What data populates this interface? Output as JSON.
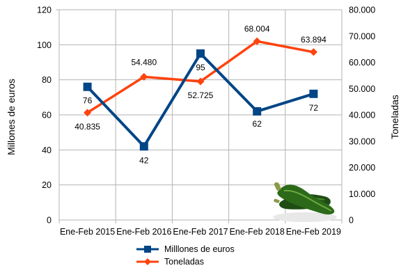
{
  "chart_data": {
    "type": "line",
    "categories": [
      "Ene-Feb 2015",
      "Ene-Feb 2016",
      "Ene-Feb 2017",
      "Ene-Feb 2018",
      "Ene-Feb 2019"
    ],
    "series": [
      {
        "name": "Milllones de euros",
        "axis": "left",
        "marker": "square",
        "color": "#004586",
        "values": [
          76,
          42,
          95,
          62,
          72
        ],
        "data_labels": [
          "76",
          "42",
          "95",
          "62",
          "72"
        ]
      },
      {
        "name": "Toneladas",
        "axis": "right",
        "marker": "diamond",
        "color": "#ff420e",
        "values": [
          40835,
          54480,
          52725,
          68004,
          63894
        ],
        "data_labels": [
          "40.835",
          "54.480",
          "52.725",
          "68.004",
          "63.894"
        ]
      }
    ],
    "ylabel": "Millones de euros",
    "y2label": "Toneladas",
    "ylim": [
      0,
      120
    ],
    "y2lim": [
      0,
      80000
    ],
    "yticks": [
      "0",
      "20",
      "40",
      "60",
      "80",
      "100",
      "120"
    ],
    "y2ticks": [
      "0",
      "10.000",
      "20.000",
      "30.000",
      "40.000",
      "50.000",
      "60.000",
      "70.000",
      "80.000"
    ],
    "grid": true,
    "legend": "bottom"
  },
  "decoration": {
    "image": "zucchini-image"
  }
}
